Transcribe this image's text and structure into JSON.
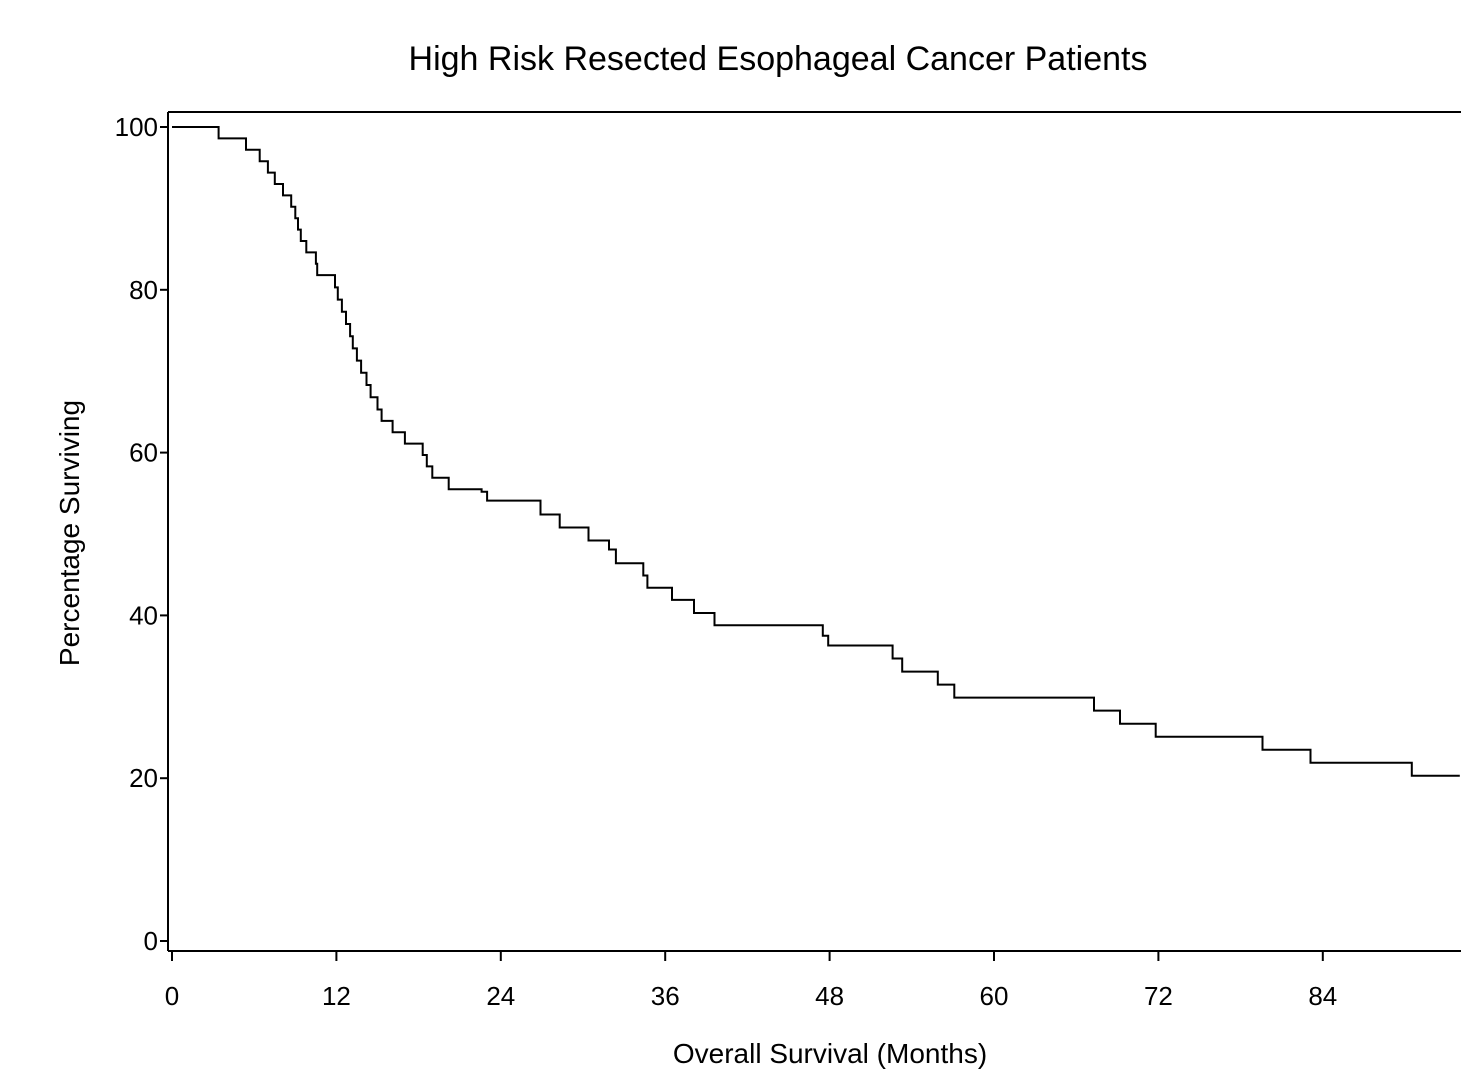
{
  "chart_data": {
    "type": "line",
    "step": true,
    "title": "High Risk Resected Esophageal Cancer Patients",
    "xlabel": "Overall Survival (Months)",
    "ylabel": "Percentage Surviving",
    "xlim": [
      0,
      94
    ],
    "ylim": [
      -1.5,
      101.5
    ],
    "x_ticks": [
      0,
      12,
      24,
      36,
      48,
      60,
      72,
      84
    ],
    "y_ticks": [
      0,
      20,
      40,
      60,
      80,
      100
    ],
    "grid": false,
    "line_color": "#000000",
    "series": [
      {
        "x": [
          0,
          3.4,
          5.4,
          6.4,
          7.0,
          7.5,
          8.1,
          8.7,
          9.0,
          9.2,
          9.4,
          9.8,
          10.5,
          10.6,
          11.9,
          12.1,
          12.4,
          12.7,
          13.0,
          13.2,
          13.5,
          13.8,
          14.2,
          14.5,
          15.0,
          15.3,
          16.1,
          17.0,
          18.3,
          18.6,
          19.0,
          20.2,
          22.6,
          23.0,
          23.2,
          26.9,
          28.3,
          30.4,
          31.9,
          32.4,
          34.4,
          34.7,
          36.5,
          38.1,
          39.6,
          47.5,
          47.9,
          52.6,
          53.3,
          55.9,
          57.1,
          67.3,
          69.2,
          71.8,
          79.6,
          83.1,
          90.5,
          94.0
        ],
        "y": [
          100,
          98.6,
          97.2,
          95.8,
          94.4,
          93.0,
          91.6,
          90.2,
          88.8,
          87.4,
          86.0,
          84.6,
          83.2,
          81.8,
          80.3,
          78.8,
          77.3,
          75.8,
          74.3,
          72.8,
          71.3,
          69.8,
          68.3,
          66.8,
          65.3,
          63.9,
          62.5,
          61.1,
          59.7,
          58.3,
          56.9,
          55.5,
          55.2,
          54.1,
          54.1,
          52.4,
          50.8,
          49.2,
          48.1,
          46.4,
          44.9,
          43.4,
          41.9,
          40.3,
          38.8,
          37.5,
          36.3,
          34.7,
          33.1,
          31.5,
          29.9,
          28.3,
          26.7,
          25.1,
          23.5,
          21.9,
          20.3,
          20.3
        ]
      }
    ]
  }
}
